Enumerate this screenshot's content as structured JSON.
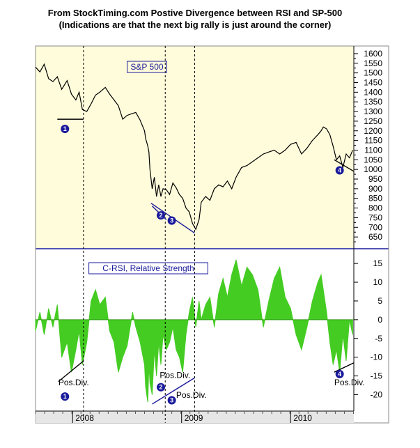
{
  "title_line1": "From StockTiming.com Postive Divergence between RSI and SP-500",
  "title_line2": "(Indications are that the next big rally is just around the corner)",
  "colors": {
    "top_panel_bg": "#fffcdb",
    "bottom_panel_bg": "#ffffff",
    "price_line": "#000000",
    "rsi_fill": "#44cc22",
    "divergence_line": "#1a1a9c",
    "marker_fill": "#1a1a9c",
    "label_box_border": "#1a1a9c",
    "vline": "#000000"
  },
  "chart_data": [
    {
      "type": "line",
      "panel": "top",
      "title": "S&P 500",
      "y_axis_side": "right",
      "ylim": [
        600,
        1625
      ],
      "yticks": [
        650,
        700,
        750,
        800,
        850,
        900,
        950,
        1000,
        1050,
        1100,
        1150,
        1200,
        1250,
        1300,
        1350,
        1400,
        1450,
        1500,
        1550,
        1600
      ],
      "xlim": [
        2007.66,
        2010.58
      ],
      "grid": false,
      "series": [
        {
          "x": [
            2007.66,
            2007.7,
            2007.74,
            2007.78,
            2007.82,
            2007.86,
            2007.9,
            2007.95,
            2007.99,
            2008.03,
            2008.06,
            2008.09,
            2008.13,
            2008.17,
            2008.21,
            2008.25,
            2008.3,
            2008.34,
            2008.38,
            2008.42,
            2008.46,
            2008.5,
            2008.55,
            2008.58,
            2008.62,
            2008.66,
            2008.67,
            2008.69,
            2008.7,
            2008.71,
            2008.73,
            2008.75,
            2008.77,
            2008.79,
            2008.81,
            2008.83,
            2008.86,
            2008.89,
            2008.92,
            2008.95,
            2008.98,
            2009.01,
            2009.04,
            2009.07,
            2009.1,
            2009.13,
            2009.16,
            2009.18,
            2009.22,
            2009.26,
            2009.3,
            2009.34,
            2009.38,
            2009.42,
            2009.46,
            2009.5,
            2009.55,
            2009.6,
            2009.65,
            2009.7,
            2009.75,
            2009.8,
            2009.85,
            2009.9,
            2009.95,
            2010.0,
            2010.05,
            2010.1,
            2010.15,
            2010.2,
            2010.25,
            2010.28,
            2010.3,
            2010.33,
            2010.36,
            2010.39,
            2010.42,
            2010.45,
            2010.48,
            2010.51,
            2010.54,
            2010.57
          ],
          "y": [
            1530,
            1505,
            1545,
            1470,
            1455,
            1480,
            1415,
            1460,
            1390,
            1360,
            1400,
            1310,
            1300,
            1340,
            1385,
            1400,
            1425,
            1390,
            1360,
            1330,
            1260,
            1280,
            1290,
            1295,
            1255,
            1200,
            1160,
            1120,
            1090,
            1000,
            900,
            960,
            860,
            920,
            860,
            900,
            895,
            870,
            930,
            905,
            870,
            850,
            800,
            780,
            720,
            690,
            740,
            830,
            860,
            840,
            900,
            920,
            910,
            940,
            900,
            960,
            1010,
            1020,
            1040,
            1060,
            1080,
            1090,
            1100,
            1080,
            1100,
            1130,
            1140,
            1080,
            1110,
            1150,
            1180,
            1200,
            1220,
            1210,
            1180,
            1120,
            1050,
            1070,
            1010,
            1080,
            1060,
            1100
          ]
        }
      ],
      "annotations": [
        {
          "label": "1",
          "x": 2007.93,
          "y": 1210
        },
        {
          "label": "2",
          "x": 2008.81,
          "y": 762
        },
        {
          "label": "3",
          "x": 2008.91,
          "y": 735
        },
        {
          "label": "4",
          "x": 2010.45,
          "y": 995
        }
      ],
      "trend_lines": [
        {
          "color": "black",
          "x": [
            2007.86,
            2008.1
          ],
          "y": [
            1260,
            1260
          ]
        },
        {
          "color": "blue",
          "x": [
            2008.72,
            2009.12
          ],
          "y": [
            825,
            670
          ]
        },
        {
          "color": "blue",
          "x": [
            2008.73,
            2008.86
          ],
          "y": [
            810,
            740
          ]
        },
        {
          "color": "black",
          "x": [
            2010.4,
            2010.58
          ],
          "y": [
            1050,
            990
          ]
        }
      ]
    },
    {
      "type": "area",
      "panel": "bottom",
      "title": "C-RSI, Relative Strength",
      "y_axis_side": "right",
      "ylim": [
        -24,
        18
      ],
      "yticks": [
        -20,
        -15,
        -10,
        -5,
        0,
        5,
        10,
        15
      ],
      "xlim": [
        2007.66,
        2010.58
      ],
      "grid": false,
      "x_tick_labels": [
        "2008",
        "2009",
        "2010"
      ],
      "x_tick_positions": [
        2008.0,
        2009.0,
        2010.0
      ],
      "series": [
        {
          "x": [
            2007.66,
            2007.7,
            2007.74,
            2007.78,
            2007.82,
            2007.86,
            2007.9,
            2007.95,
            2007.99,
            2008.03,
            2008.06,
            2008.09,
            2008.13,
            2008.17,
            2008.21,
            2008.25,
            2008.3,
            2008.34,
            2008.38,
            2008.42,
            2008.46,
            2008.5,
            2008.55,
            2008.58,
            2008.62,
            2008.66,
            2008.67,
            2008.69,
            2008.7,
            2008.71,
            2008.73,
            2008.75,
            2008.77,
            2008.79,
            2008.81,
            2008.83,
            2008.86,
            2008.89,
            2008.92,
            2008.95,
            2008.98,
            2009.01,
            2009.04,
            2009.07,
            2009.1,
            2009.13,
            2009.16,
            2009.18,
            2009.22,
            2009.26,
            2009.3,
            2009.34,
            2009.38,
            2009.42,
            2009.46,
            2009.5,
            2009.55,
            2009.6,
            2009.65,
            2009.7,
            2009.75,
            2009.8,
            2009.85,
            2009.9,
            2009.95,
            2010.0,
            2010.05,
            2010.1,
            2010.15,
            2010.2,
            2010.25,
            2010.28,
            2010.3,
            2010.33,
            2010.36,
            2010.39,
            2010.42,
            2010.45,
            2010.48,
            2010.51,
            2010.54,
            2010.57
          ],
          "y": [
            -3,
            2,
            -4,
            3,
            -2,
            4,
            -10,
            -6,
            -14,
            -8,
            -3,
            -12,
            -6,
            5,
            8,
            4,
            6,
            -3,
            -6,
            -14,
            -10,
            -7,
            2,
            -2,
            -6,
            -12,
            -18,
            -22,
            -12,
            -17,
            -20,
            -8,
            -15,
            -6,
            -12,
            -4,
            -8,
            -6,
            -2,
            -8,
            -10,
            -14,
            -4,
            2,
            6,
            -2,
            5,
            0,
            4,
            6,
            -2,
            7,
            11,
            6,
            12,
            16,
            9,
            14,
            12,
            8,
            -2,
            5,
            11,
            14,
            6,
            3,
            -4,
            -8,
            -2,
            5,
            10,
            12,
            8,
            2,
            -6,
            -12,
            -8,
            -14,
            -4,
            -11,
            0,
            -4
          ]
        }
      ],
      "annotations": [
        {
          "label": "1",
          "x": 2007.93,
          "y": -20.5
        },
        {
          "label": "2",
          "x": 2008.81,
          "y": -18
        },
        {
          "label": "3",
          "x": 2008.91,
          "y": -21.5
        },
        {
          "label": "4",
          "x": 2010.45,
          "y": -14.5
        }
      ],
      "text_annotations": [
        {
          "text": "Pos.Div.",
          "x": 2007.87,
          "y": -17.5,
          "anchor": "start"
        },
        {
          "text": "Pos.Div.",
          "x": 2008.8,
          "y": -15.5,
          "anchor": "start"
        },
        {
          "text": "Pos.Div.",
          "x": 2008.95,
          "y": -20.8,
          "anchor": "start"
        },
        {
          "text": "Pos.Div.",
          "x": 2010.4,
          "y": -17.5,
          "anchor": "start"
        }
      ],
      "trend_lines": [
        {
          "color": "black",
          "x": [
            2007.87,
            2008.1
          ],
          "y": [
            -16.5,
            -11
          ]
        },
        {
          "color": "blue",
          "x": [
            2008.73,
            2009.12
          ],
          "y": [
            -22.5,
            -15.5
          ]
        },
        {
          "color": "black",
          "x": [
            2010.4,
            2010.58
          ],
          "y": [
            -14,
            -11.5
          ]
        }
      ]
    }
  ],
  "vertical_lines": [
    2008.1,
    2008.85,
    2009.12
  ]
}
